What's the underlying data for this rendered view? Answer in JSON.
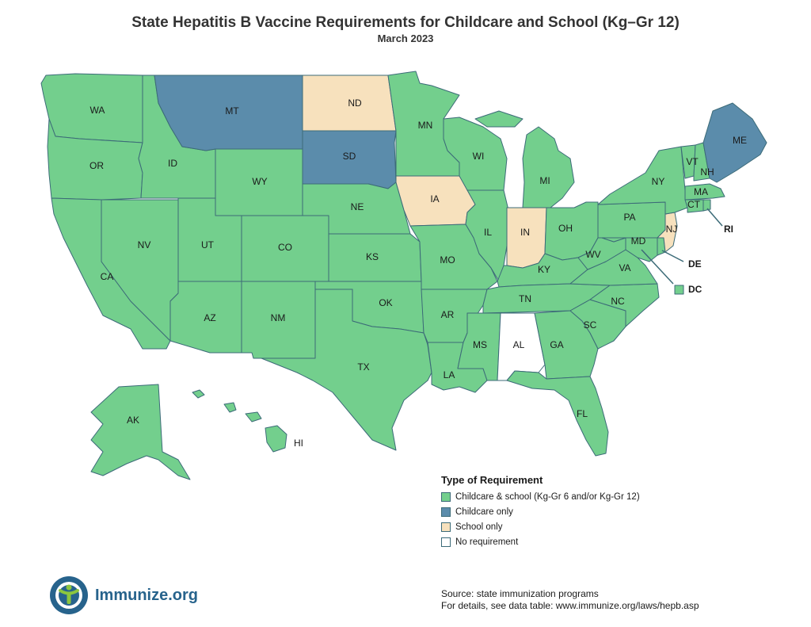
{
  "title": "State Hepatitis B Vaccine Requirements for Childcare and School (Kg–Gr 12)",
  "subtitle": "March 2023",
  "legend": {
    "title": "Type of Requirement",
    "items": [
      {
        "key": "both",
        "label": "Childcare & school (Kg-Gr 6 and/or Kg-Gr 12)",
        "color": "#73cf8d"
      },
      {
        "key": "childcare",
        "label": "Childcare only",
        "color": "#5b8cab"
      },
      {
        "key": "school",
        "label": "School only",
        "color": "#f7e1bd"
      },
      {
        "key": "none",
        "label": "No requirement",
        "color": "#ffffff"
      }
    ]
  },
  "states": {
    "WA": {
      "label": "WA",
      "category": "both"
    },
    "OR": {
      "label": "OR",
      "category": "both"
    },
    "CA": {
      "label": "CA",
      "category": "both"
    },
    "ID": {
      "label": "ID",
      "category": "both"
    },
    "NV": {
      "label": "NV",
      "category": "both"
    },
    "MT": {
      "label": "MT",
      "category": "childcare"
    },
    "WY": {
      "label": "WY",
      "category": "both"
    },
    "UT": {
      "label": "UT",
      "category": "both"
    },
    "AZ": {
      "label": "AZ",
      "category": "both"
    },
    "CO": {
      "label": "CO",
      "category": "both"
    },
    "NM": {
      "label": "NM",
      "category": "both"
    },
    "ND": {
      "label": "ND",
      "category": "school"
    },
    "SD": {
      "label": "SD",
      "category": "childcare"
    },
    "NE": {
      "label": "NE",
      "category": "both"
    },
    "KS": {
      "label": "KS",
      "category": "both"
    },
    "OK": {
      "label": "OK",
      "category": "both"
    },
    "TX": {
      "label": "TX",
      "category": "both"
    },
    "MN": {
      "label": "MN",
      "category": "both"
    },
    "IA": {
      "label": "IA",
      "category": "school"
    },
    "MO": {
      "label": "MO",
      "category": "both"
    },
    "AR": {
      "label": "AR",
      "category": "both"
    },
    "LA": {
      "label": "LA",
      "category": "both"
    },
    "WI": {
      "label": "WI",
      "category": "both"
    },
    "IL": {
      "label": "IL",
      "category": "both"
    },
    "MI": {
      "label": "MI",
      "category": "both"
    },
    "IN": {
      "label": "IN",
      "category": "school"
    },
    "OH": {
      "label": "OH",
      "category": "both"
    },
    "KY": {
      "label": "KY",
      "category": "both"
    },
    "TN": {
      "label": "TN",
      "category": "both"
    },
    "MS": {
      "label": "MS",
      "category": "both"
    },
    "AL": {
      "label": "AL",
      "category": "none"
    },
    "GA": {
      "label": "GA",
      "category": "both"
    },
    "FL": {
      "label": "FL",
      "category": "both"
    },
    "SC": {
      "label": "SC",
      "category": "both"
    },
    "NC": {
      "label": "NC",
      "category": "both"
    },
    "VA": {
      "label": "VA",
      "category": "both"
    },
    "WV": {
      "label": "WV",
      "category": "both"
    },
    "PA": {
      "label": "PA",
      "category": "both"
    },
    "NY": {
      "label": "NY",
      "category": "both"
    },
    "VT": {
      "label": "VT",
      "category": "both"
    },
    "NH": {
      "label": "NH",
      "category": "both"
    },
    "ME": {
      "label": "ME",
      "category": "childcare"
    },
    "MA": {
      "label": "MA",
      "category": "both"
    },
    "CT": {
      "label": "CT",
      "category": "both"
    },
    "RI": {
      "label": "RI",
      "category": "both"
    },
    "NJ": {
      "label": "NJ",
      "category": "school"
    },
    "DE": {
      "label": "DE",
      "category": "both"
    },
    "MD": {
      "label": "MD",
      "category": "both"
    },
    "DC": {
      "label": "DC",
      "category": "both"
    },
    "AK": {
      "label": "AK",
      "category": "both"
    },
    "HI": {
      "label": "HI",
      "category": "both"
    }
  },
  "logo": {
    "text": "Immunize.org",
    "icon": "immunize-logo-icon"
  },
  "source": {
    "line1": "Source: state immunization programs",
    "line2": "For details, see data table: www.immunize.org/laws/hepb.asp"
  }
}
